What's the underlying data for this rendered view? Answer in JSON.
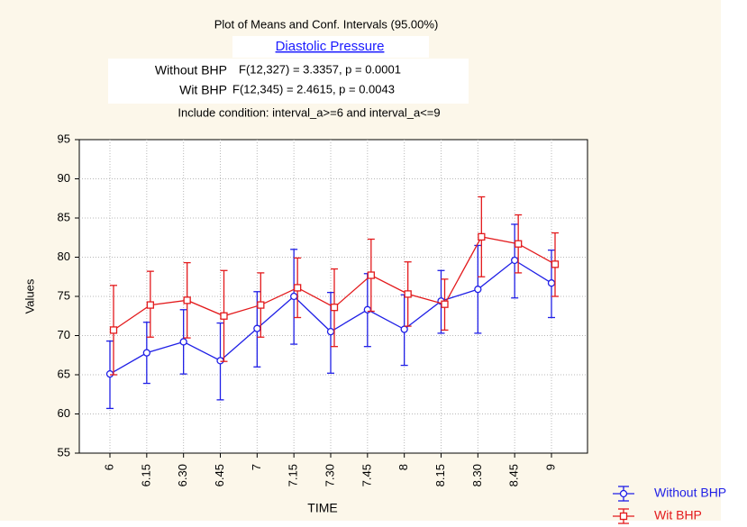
{
  "chart_data": {
    "type": "errorline",
    "title": "Plot of Means and Conf. Intervals (95.00%)",
    "subtitle": "Diastolic Pressure",
    "annotations": [
      {
        "label": "Without BHP",
        "stat": "F(12,327) = 3.3357, p = 0.0001"
      },
      {
        "label": "Wit BHP",
        "stat": "F(12,345) = 2.4615, p = 0.0043"
      }
    ],
    "condition": "Include condition: interval_a>=6 and interval_a<=9",
    "x_label": "TIME",
    "y_label": "Values",
    "categories": [
      "6",
      "6.15",
      "6.30",
      "6.45",
      "7",
      "7.15",
      "7.30",
      "7.45",
      "8",
      "8.15",
      "8.30",
      "8.45",
      "9"
    ],
    "ylim": [
      55,
      95
    ],
    "yticks": [
      55,
      60,
      65,
      70,
      75,
      80,
      85,
      90,
      95
    ],
    "grid": true,
    "series": [
      {
        "name": "Without BHP",
        "color": "#1f1fe6",
        "marker": "circle",
        "values": [
          65.1,
          67.8,
          69.2,
          66.8,
          70.9,
          75.0,
          70.5,
          73.3,
          70.8,
          74.4,
          75.9,
          79.6,
          76.7
        ],
        "lower": [
          60.7,
          63.9,
          65.1,
          61.8,
          66.0,
          68.9,
          65.2,
          68.6,
          66.2,
          70.3,
          70.3,
          74.8,
          72.3
        ],
        "upper": [
          69.3,
          71.7,
          73.3,
          71.6,
          75.6,
          81.0,
          75.5,
          77.9,
          75.2,
          78.3,
          81.5,
          84.2,
          80.9
        ]
      },
      {
        "name": "Wit BHP",
        "color": "#e31a1c",
        "marker": "square",
        "values": [
          70.7,
          73.9,
          74.5,
          72.5,
          73.9,
          76.1,
          73.6,
          77.7,
          75.3,
          74.0,
          82.6,
          81.7,
          79.1
        ],
        "lower": [
          65.0,
          69.8,
          69.7,
          66.7,
          69.8,
          72.3,
          68.6,
          73.1,
          71.2,
          70.7,
          77.5,
          78.0,
          75.0
        ],
        "upper": [
          76.4,
          78.2,
          79.3,
          78.3,
          78.0,
          79.9,
          78.5,
          82.3,
          79.4,
          77.2,
          87.7,
          85.4,
          83.1
        ]
      }
    ]
  }
}
